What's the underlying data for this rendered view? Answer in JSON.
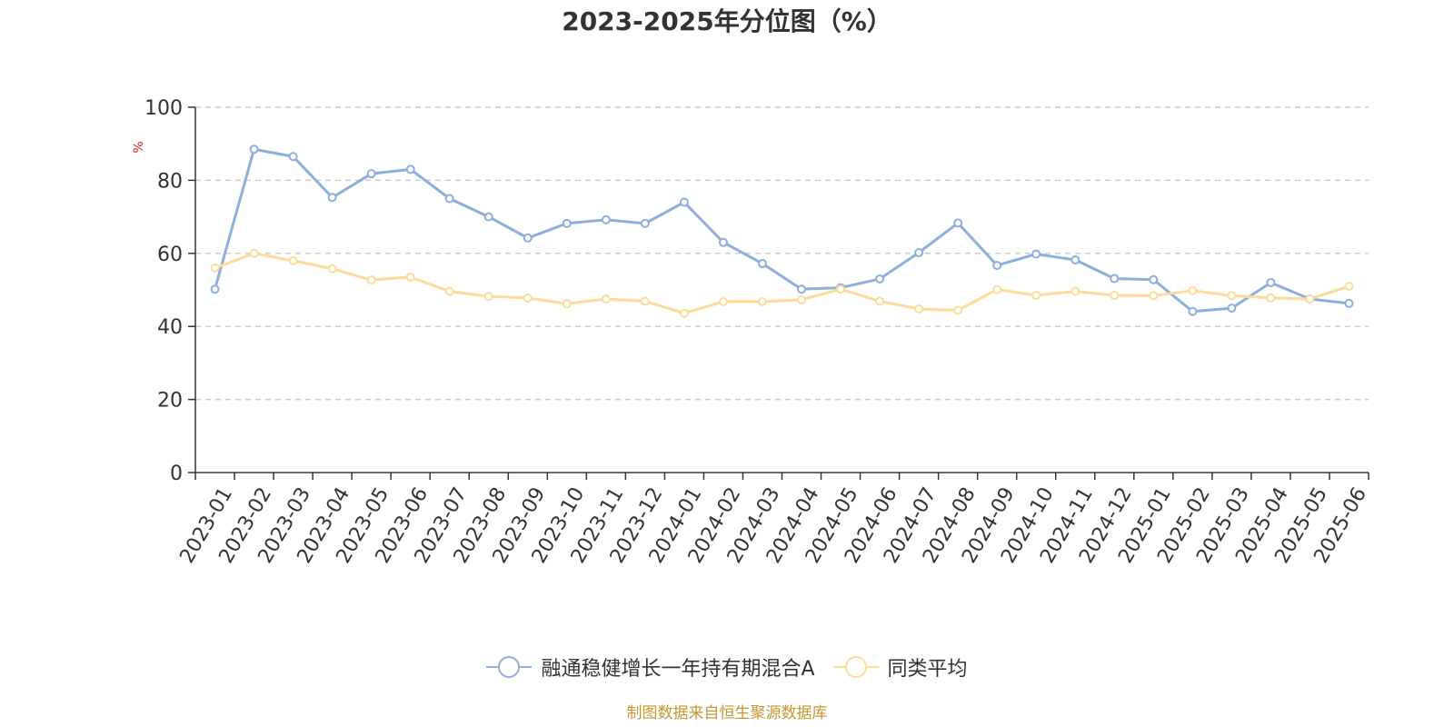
{
  "chart_data": {
    "type": "line",
    "title": "2023-2025年分位图（%）",
    "ylabel": "%",
    "ylim": [
      0,
      100
    ],
    "yticks": [
      0,
      20,
      40,
      60,
      80,
      100
    ],
    "grid": "horizontal-dashed",
    "legend_position": "bottom",
    "categories": [
      "2023-01",
      "2023-02",
      "2023-03",
      "2023-04",
      "2023-05",
      "2023-06",
      "2023-07",
      "2023-08",
      "2023-09",
      "2023-10",
      "2023-11",
      "2023-12",
      "2024-01",
      "2024-02",
      "2024-03",
      "2024-04",
      "2024-05",
      "2024-06",
      "2024-07",
      "2024-08",
      "2024-09",
      "2024-10",
      "2024-11",
      "2024-12",
      "2025-01",
      "2025-02",
      "2025-03",
      "2025-04",
      "2025-05",
      "2025-06"
    ],
    "series": [
      {
        "name": "融通稳健增长一年持有期混合A",
        "color": "#8eaedb",
        "values": [
          50.2,
          88.5,
          86.5,
          75.3,
          81.8,
          83.0,
          75.0,
          70.0,
          64.2,
          68.2,
          69.2,
          68.2,
          74.0,
          63.0,
          57.2,
          50.2,
          50.6,
          53.0,
          60.2,
          68.3,
          56.7,
          59.8,
          58.2,
          53.1,
          52.8,
          44.1,
          45.0,
          52.0,
          47.5,
          46.3
        ]
      },
      {
        "name": "同类平均",
        "color": "#fddb9a",
        "values": [
          56.0,
          60.0,
          58.0,
          55.8,
          52.7,
          53.5,
          49.6,
          48.2,
          47.8,
          46.2,
          47.5,
          46.9,
          43.6,
          46.8,
          46.8,
          47.3,
          50.2,
          46.9,
          44.8,
          44.4,
          50.1,
          48.5,
          49.6,
          48.5,
          48.4,
          49.8,
          48.4,
          47.8,
          47.5,
          51.0
        ]
      }
    ]
  },
  "footer": {
    "source": "制图数据来自恒生聚源数据库",
    "source_color": "#c8962e"
  }
}
